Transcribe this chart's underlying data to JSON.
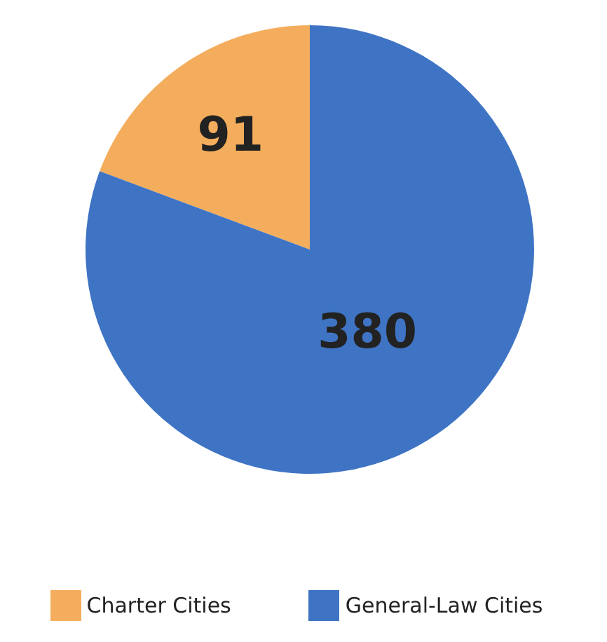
{
  "chart_data": {
    "type": "pie",
    "categories": [
      "Charter Cities",
      "General-Law Cities"
    ],
    "values": [
      91,
      380
    ],
    "colors": [
      "#f4ad5c",
      "#3f74c4"
    ],
    "data_labels": true,
    "legend": "bottom"
  }
}
